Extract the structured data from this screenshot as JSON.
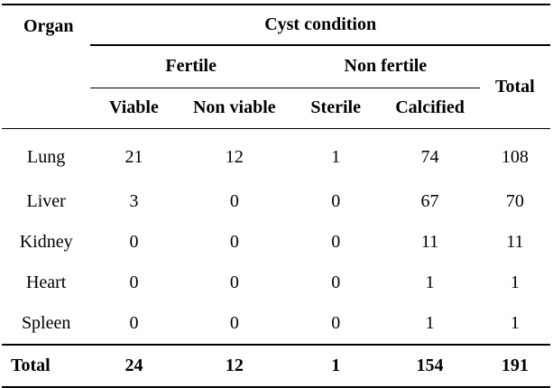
{
  "headers": {
    "organ": "Organ",
    "cyst_condition": "Cyst condition",
    "fertile": "Fertile",
    "non_fertile": "Non fertile",
    "total": "Total",
    "columns": [
      "Viable",
      "Non viable",
      "Sterile",
      "Calcified"
    ]
  },
  "rows": [
    {
      "organ": "Lung",
      "values": [
        "21",
        "12",
        "1",
        "74",
        "108"
      ]
    },
    {
      "organ": "Liver",
      "values": [
        "3",
        "0",
        "0",
        "67",
        "70"
      ]
    },
    {
      "organ": "Kidney",
      "values": [
        "0",
        "0",
        "0",
        "11",
        "11"
      ]
    },
    {
      "organ": "Heart",
      "values": [
        "0",
        "0",
        "0",
        "1",
        "1"
      ]
    },
    {
      "organ": "Spleen",
      "values": [
        "0",
        "0",
        "0",
        "1",
        "1"
      ]
    }
  ],
  "total_row": {
    "label": "Total",
    "values": [
      "24",
      "12",
      "1",
      "154",
      "191"
    ]
  }
}
